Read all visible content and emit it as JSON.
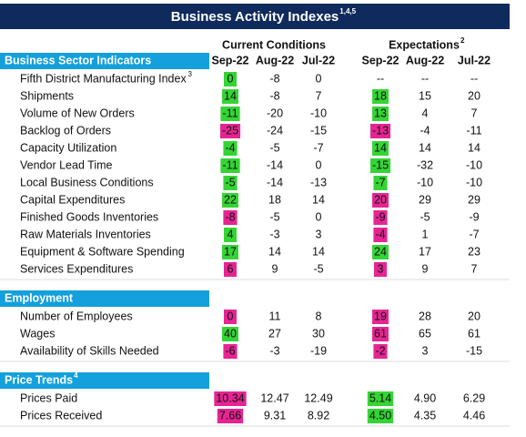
{
  "header": {
    "title": "Business Activity Indexes",
    "note": "1,4,5"
  },
  "groups": [
    {
      "label": "Current Conditions"
    },
    {
      "label": "Expectations",
      "note": "2"
    }
  ],
  "columns": [
    "Sep-22",
    "Aug-22",
    "Jul-22",
    "Sep-22",
    "Aug-22",
    "Jul-22"
  ],
  "highlight_colors": {
    "green": "#35d435",
    "pink": "#e52592"
  },
  "sections": [
    {
      "title": "Business Sector Indicators",
      "rows": [
        {
          "label": "Fifth District Manufacturing Index",
          "note": "3",
          "values": [
            "0",
            "-8",
            "0",
            "--",
            "--",
            "--"
          ],
          "highlights": [
            "green",
            null
          ]
        },
        {
          "label": "Shipments",
          "values": [
            "14",
            "-8",
            "7",
            "18",
            "15",
            "20"
          ],
          "highlights": [
            "green",
            "green"
          ]
        },
        {
          "label": "Volume of New Orders",
          "values": [
            "-11",
            "-20",
            "-10",
            "13",
            "4",
            "7"
          ],
          "highlights": [
            "green",
            "green"
          ]
        },
        {
          "label": "Backlog of Orders",
          "values": [
            "-25",
            "-24",
            "-15",
            "-13",
            "-4",
            "-11"
          ],
          "highlights": [
            "pink",
            "pink"
          ]
        },
        {
          "label": "Capacity Utilization",
          "values": [
            "-4",
            "-5",
            "-7",
            "14",
            "14",
            "14"
          ],
          "highlights": [
            "green",
            "green"
          ]
        },
        {
          "label": "Vendor Lead Time",
          "values": [
            "-11",
            "-14",
            "0",
            "-15",
            "-32",
            "-10"
          ],
          "highlights": [
            "green",
            "green"
          ]
        },
        {
          "label": "Local Business Conditions",
          "values": [
            "-5",
            "-14",
            "-13",
            "-7",
            "-10",
            "-10"
          ],
          "highlights": [
            "green",
            "green"
          ]
        },
        {
          "label": "Capital Expenditures",
          "values": [
            "22",
            "18",
            "14",
            "20",
            "29",
            "29"
          ],
          "highlights": [
            "green",
            "pink"
          ]
        },
        {
          "label": "Finished Goods Inventories",
          "values": [
            "-8",
            "-5",
            "0",
            "-9",
            "-5",
            "-9"
          ],
          "highlights": [
            "pink",
            "pink"
          ]
        },
        {
          "label": "Raw Materials Inventories",
          "values": [
            "4",
            "-3",
            "3",
            "-4",
            "1",
            "-7"
          ],
          "highlights": [
            "green",
            "pink"
          ]
        },
        {
          "label": "Equipment & Software Spending",
          "values": [
            "17",
            "14",
            "14",
            "24",
            "17",
            "23"
          ],
          "highlights": [
            "green",
            "green"
          ]
        },
        {
          "label": "Services Expenditures",
          "values": [
            "6",
            "9",
            "-5",
            "3",
            "9",
            "7"
          ],
          "highlights": [
            "pink",
            "pink"
          ]
        }
      ]
    },
    {
      "title": "Employment",
      "rows": [
        {
          "label": "Number of Employees",
          "values": [
            "0",
            "11",
            "8",
            "19",
            "28",
            "20"
          ],
          "highlights": [
            "pink",
            "pink"
          ]
        },
        {
          "label": "Wages",
          "values": [
            "40",
            "27",
            "30",
            "61",
            "65",
            "61"
          ],
          "highlights": [
            "green",
            "pink"
          ]
        },
        {
          "label": "Availability of Skills Needed",
          "values": [
            "-6",
            "-3",
            "-19",
            "-2",
            "3",
            "-15"
          ],
          "highlights": [
            "pink",
            "pink"
          ]
        }
      ]
    },
    {
      "title": "Price Trends",
      "note": "4",
      "rows": [
        {
          "label": "Prices Paid",
          "values": [
            "10.34",
            "12.47",
            "12.49",
            "5.14",
            "4.90",
            "6.29"
          ],
          "highlights": [
            "pink",
            "green"
          ]
        },
        {
          "label": "Prices Received",
          "values": [
            "7.66",
            "9.31",
            "8.92",
            "4.50",
            "4.35",
            "4.46"
          ],
          "highlights": [
            "pink",
            "green"
          ]
        }
      ]
    }
  ]
}
